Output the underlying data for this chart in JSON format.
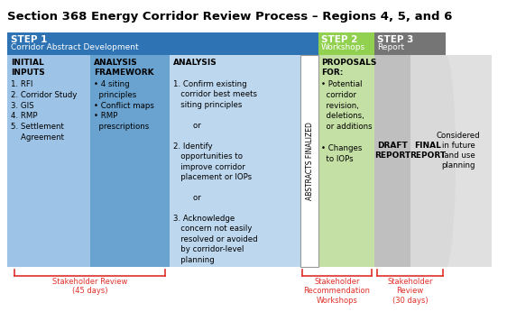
{
  "title": "Section 368 Energy Corridor Review Process – Regions 4, 5, and 6",
  "title_fontsize": 9.5,
  "bg_color": "#ffffff",
  "step1_color": "#2E74B5",
  "step1_col1_color": "#9DC3E6",
  "step1_col2_color": "#6BA3D0",
  "step1_col3_color": "#BDD7EE",
  "step2_color": "#92D050",
  "step2_light_color": "#C5E0A5",
  "step3_color": "#757575",
  "step3_col6_color": "#BFBFBF",
  "step3_col7_color": "#D9D9D9",
  "step3_col8_color": "#E0E0E0",
  "white_strip_color": "#ffffff",
  "red_color": "#E0302A",
  "step1_label": "STEP 1",
  "step1_sublabel": "Corridor Abstract Development",
  "step2_label": "STEP 2",
  "step2_sublabel": "Workshops",
  "step3_label": "STEP 3",
  "step3_sublabel": "Report",
  "col1_header": "INITIAL\nINPUTS",
  "col1_body": "1. RFI\n2. Corridor Study\n3. GIS\n4. RMP\n5. Settlement\n    Agreement",
  "col2_header": "ANALYSIS\nFRAMEWORK",
  "col2_body": "• 4 siting\n  principles\n• Conflict maps\n• RMP\n  prescriptions",
  "col3_header": "ANALYSIS",
  "col3_body": "1. Confirm existing\n   corridor best meets\n   siting principles\n\n        or\n\n2. Identify\n   opportunities to\n   improve corridor\n   placement or IOPs\n\n        or\n\n3. Acknowledge\n   concern not easily\n   resolved or avoided\n   by corridor-level\n   planning",
  "col4_vertical": "ABSTRACTS FINALIZED",
  "col5_header": "PROPOSALS\nFOR:",
  "col5_body": "• Potential\n  corridor\n  revision,\n  deletions,\n  or additions\n\n• Changes\n  to IOPs",
  "col6_body": "DRAFT\nREPORT",
  "col7_body": "FINAL\nREPORT",
  "col8_body": "Considered\nin future\nland use\nplanning",
  "bottom_label1": "Stakeholder Review\n(45 days)",
  "bottom_label2": "Stakeholder\nRecommendation\nWorkshops",
  "bottom_label3": "Stakeholder\nReview\n(30 days)"
}
